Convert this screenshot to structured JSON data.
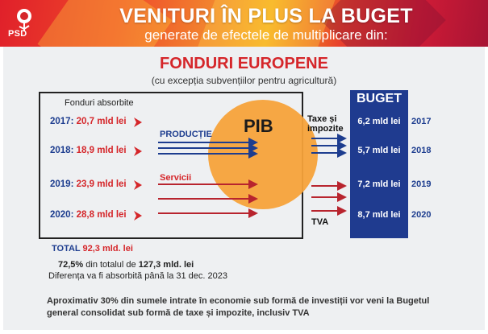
{
  "header": {
    "logo_text": "PSD",
    "title": "VENITURI ÎN PLUS LA BUGET",
    "subtitle": "generate de efectele de multiplicare din:"
  },
  "section": {
    "title": "FONDURI EUROPENE",
    "subtitle": "(cu excepția subvențiilor pentru agricultură)"
  },
  "absorbed": {
    "label": "Fonduri absorbite",
    "rows": [
      {
        "year": "2017:",
        "value": "20,7 mld lei"
      },
      {
        "year": "2018:",
        "value": "18,9 mld lei"
      },
      {
        "year": "2019:",
        "value": "23,9 mld lei"
      },
      {
        "year": "2020:",
        "value": "28,8 mld lei"
      }
    ]
  },
  "flow": {
    "productie": "PRODUCȚIE",
    "servicii": "Servicii",
    "pib": "PIB",
    "taxe": "Taxe și",
    "taxe2": "impozite",
    "tva": "TVA"
  },
  "buget": {
    "title": "BUGET",
    "rows": [
      {
        "value": "6,2 mld lei",
        "year": "2017"
      },
      {
        "value": "5,7 mld lei",
        "year": "2018"
      },
      {
        "value": "7,2 mld lei",
        "year": "2019"
      },
      {
        "value": "8,7 mld lei",
        "year": "2020"
      }
    ]
  },
  "total": {
    "label": "TOTAL",
    "value": "92,3 mld. lei"
  },
  "notes": {
    "pct": "72,5%",
    "pct_rest": " din totalul de ",
    "pct_total": "127,3 mld. lei",
    "deadline": "Diferența va fi absorbită până la 31 dec. 2023"
  },
  "footer": "Aproximativ 30% din sumele intrate în economie sub formă de investiții vor veni la Bugetul general consolidat sub formă de taxe și impozite, inclusiv TVA",
  "colors": {
    "red": "#d5262a",
    "blue": "#1d3d8f",
    "orange": "#f5a23a",
    "buget": "#1f3b8f"
  }
}
